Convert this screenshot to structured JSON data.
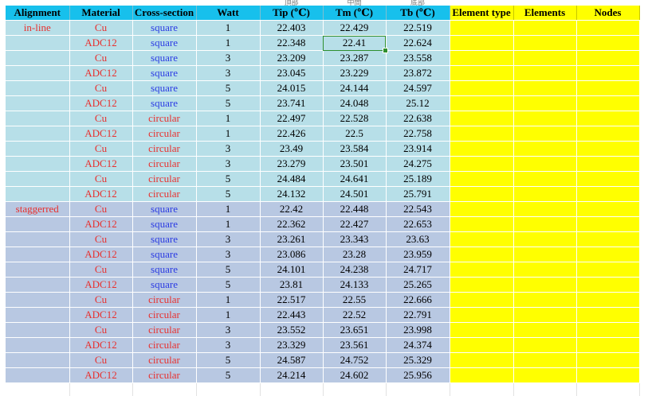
{
  "upper_labels": [
    "頂部",
    "中間",
    "底部"
  ],
  "headers": {
    "alignment": "Alignment",
    "material": "Material",
    "cross_section": "Cross-section",
    "watt": "Watt",
    "tip": "Tip (℃)",
    "tm": "Tm (℃)",
    "tb": "Tb (℃)",
    "element_type": "Element type",
    "elements": "Elements",
    "nodes": "Nodes"
  },
  "rows": [
    {
      "alignment": "in-line",
      "material": "Cu",
      "cross_section": "square",
      "watt": "1",
      "tip": "22.403",
      "tm": "22.429",
      "tb": "22.519"
    },
    {
      "alignment": "",
      "material": "ADC12",
      "cross_section": "square",
      "watt": "1",
      "tip": "22.348",
      "tm": "22.41",
      "tb": "22.624"
    },
    {
      "alignment": "",
      "material": "Cu",
      "cross_section": "square",
      "watt": "3",
      "tip": "23.209",
      "tm": "23.287",
      "tb": "23.558"
    },
    {
      "alignment": "",
      "material": "ADC12",
      "cross_section": "square",
      "watt": "3",
      "tip": "23.045",
      "tm": "23.229",
      "tb": "23.872"
    },
    {
      "alignment": "",
      "material": "Cu",
      "cross_section": "square",
      "watt": "5",
      "tip": "24.015",
      "tm": "24.144",
      "tb": "24.597"
    },
    {
      "alignment": "",
      "material": "ADC12",
      "cross_section": "square",
      "watt": "5",
      "tip": "23.741",
      "tm": "24.048",
      "tb": "25.12"
    },
    {
      "alignment": "",
      "material": "Cu",
      "cross_section": "circular",
      "watt": "1",
      "tip": "22.497",
      "tm": "22.528",
      "tb": "22.638"
    },
    {
      "alignment": "",
      "material": "ADC12",
      "cross_section": "circular",
      "watt": "1",
      "tip": "22.426",
      "tm": "22.5",
      "tb": "22.758"
    },
    {
      "alignment": "",
      "material": "Cu",
      "cross_section": "circular",
      "watt": "3",
      "tip": "23.49",
      "tm": "23.584",
      "tb": "23.914"
    },
    {
      "alignment": "",
      "material": "ADC12",
      "cross_section": "circular",
      "watt": "3",
      "tip": "23.279",
      "tm": "23.501",
      "tb": "24.275"
    },
    {
      "alignment": "",
      "material": "Cu",
      "cross_section": "circular",
      "watt": "5",
      "tip": "24.484",
      "tm": "24.641",
      "tb": "25.189"
    },
    {
      "alignment": "",
      "material": "ADC12",
      "cross_section": "circular",
      "watt": "5",
      "tip": "24.132",
      "tm": "24.501",
      "tb": "25.791"
    },
    {
      "alignment": "staggerred",
      "material": "Cu",
      "cross_section": "square",
      "watt": "1",
      "tip": "22.42",
      "tm": "22.448",
      "tb": "22.543"
    },
    {
      "alignment": "",
      "material": "ADC12",
      "cross_section": "square",
      "watt": "1",
      "tip": "22.362",
      "tm": "22.427",
      "tb": "22.653"
    },
    {
      "alignment": "",
      "material": "Cu",
      "cross_section": "square",
      "watt": "3",
      "tip": "23.261",
      "tm": "23.343",
      "tb": "23.63"
    },
    {
      "alignment": "",
      "material": "ADC12",
      "cross_section": "square",
      "watt": "3",
      "tip": "23.086",
      "tm": "23.28",
      "tb": "23.959"
    },
    {
      "alignment": "",
      "material": "Cu",
      "cross_section": "square",
      "watt": "5",
      "tip": "24.101",
      "tm": "24.238",
      "tb": "24.717"
    },
    {
      "alignment": "",
      "material": "ADC12",
      "cross_section": "square",
      "watt": "5",
      "tip": "23.81",
      "tm": "24.133",
      "tb": "25.265"
    },
    {
      "alignment": "",
      "material": "Cu",
      "cross_section": "circular",
      "watt": "1",
      "tip": "22.517",
      "tm": "22.55",
      "tb": "22.666"
    },
    {
      "alignment": "",
      "material": "ADC12",
      "cross_section": "circular",
      "watt": "1",
      "tip": "22.443",
      "tm": "22.52",
      "tb": "22.791"
    },
    {
      "alignment": "",
      "material": "Cu",
      "cross_section": "circular",
      "watt": "3",
      "tip": "23.552",
      "tm": "23.651",
      "tb": "23.998"
    },
    {
      "alignment": "",
      "material": "ADC12",
      "cross_section": "circular",
      "watt": "3",
      "tip": "23.329",
      "tm": "23.561",
      "tb": "24.374"
    },
    {
      "alignment": "",
      "material": "Cu",
      "cross_section": "circular",
      "watt": "5",
      "tip": "24.587",
      "tm": "24.752",
      "tb": "25.329"
    },
    {
      "alignment": "",
      "material": "ADC12",
      "cross_section": "circular",
      "watt": "5",
      "tip": "24.214",
      "tm": "24.602",
      "tb": "25.956"
    }
  ],
  "selected_cell": {
    "row": 1,
    "column": "tm"
  },
  "colors": {
    "header_bg": "#17c0ec",
    "inline_bg": "#b7dfe8",
    "staggered_bg": "#b8c8e2",
    "highlight_bg": "#ffff00",
    "red_text": "#e8302e",
    "blue_text": "#2b3be3",
    "selection": "#2f8f2f"
  }
}
